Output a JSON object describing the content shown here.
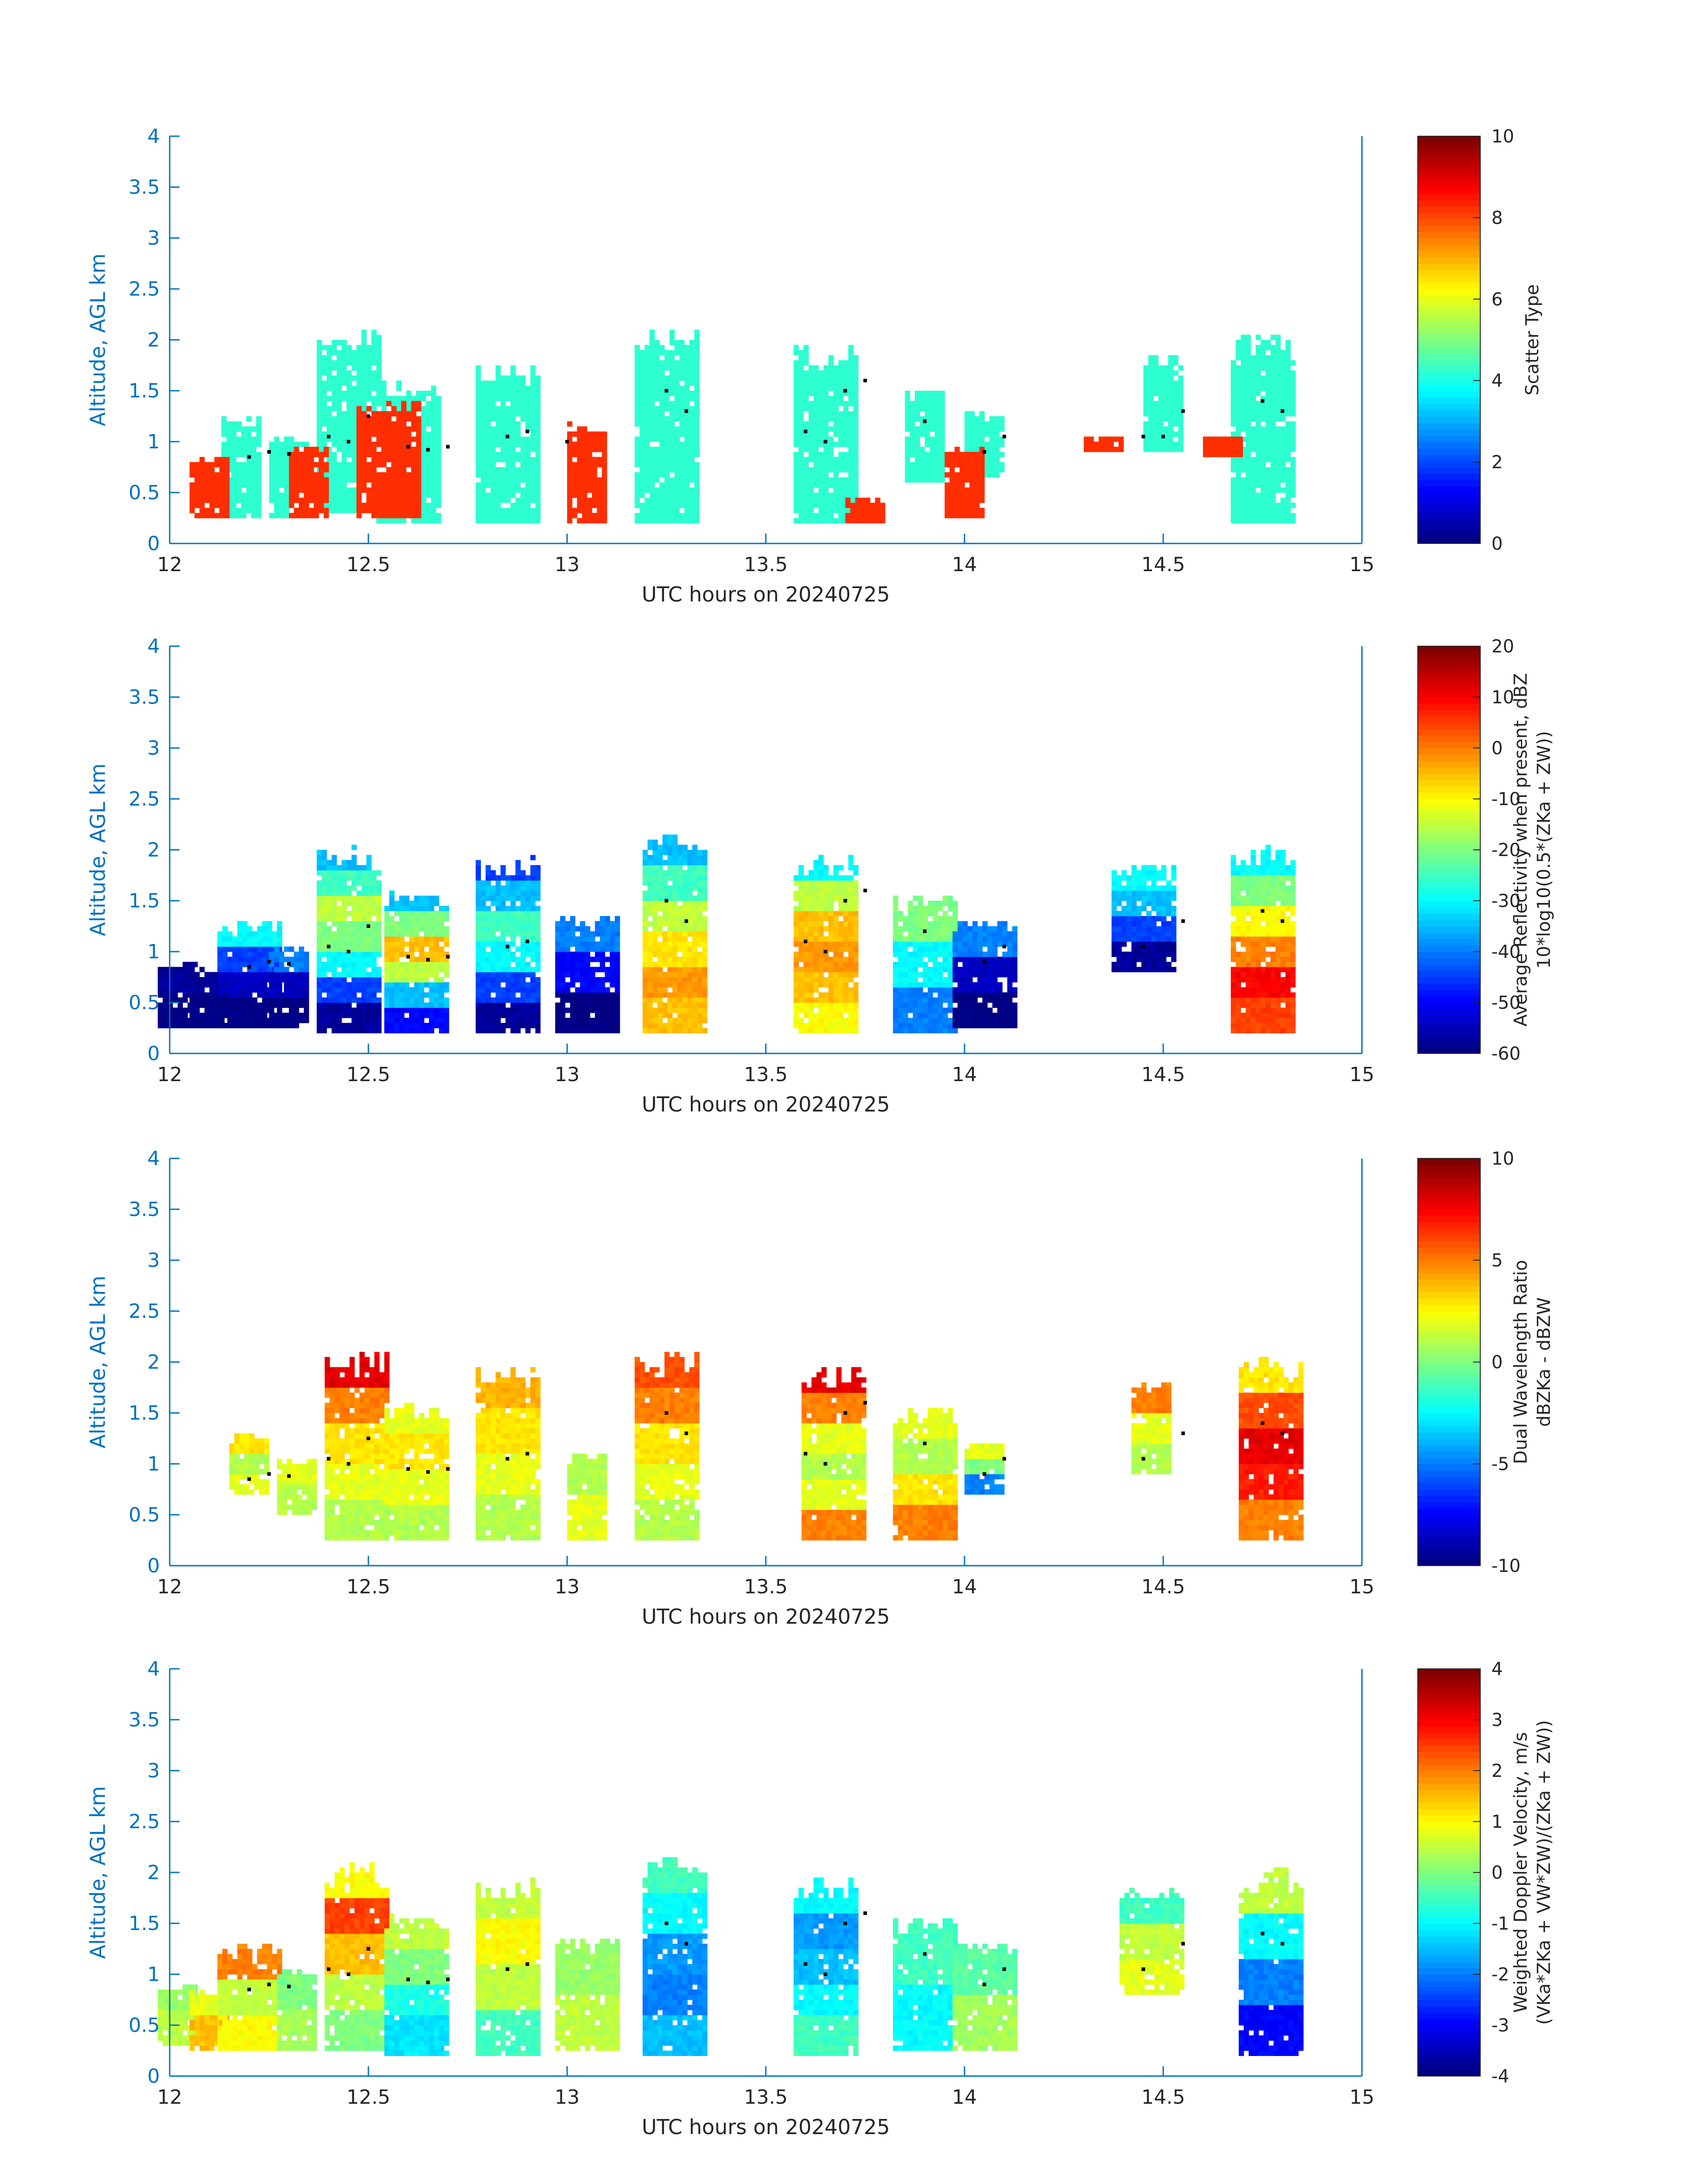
{
  "chart_data": [
    {
      "type": "heatmap",
      "panel": "scatter-type",
      "xlabel": "UTC hours on 20240725",
      "ylabel": "Altitude, AGL km",
      "xlim": [
        12,
        15
      ],
      "ylim": [
        0,
        4
      ],
      "xticks": [
        "12",
        "12.5",
        "13",
        "13.5",
        "14",
        "14.5",
        "15"
      ],
      "yticks": [
        "0",
        "0.5",
        "1",
        "1.5",
        "2",
        "2.5",
        "3",
        "3.5",
        "4"
      ],
      "colorbar": {
        "label_lines": [
          "Scatter Type"
        ],
        "range": [
          0,
          10
        ],
        "ticks": [
          "0",
          "2",
          "4",
          "6",
          "8",
          "10"
        ],
        "colormap": "jet"
      },
      "columns": [
        {
          "t": 12.18,
          "base": 0.25,
          "top": 1.25,
          "values": [
            4.2
          ]
        },
        {
          "t": 12.3,
          "base": 0.25,
          "top": 1.05,
          "values": [
            4.2
          ]
        },
        {
          "t": 12.45,
          "base": 0.3,
          "top": 2.1,
          "values": [
            4.2
          ]
        },
        {
          "t": 12.6,
          "base": 0.2,
          "top": 1.6,
          "values": [
            4.2
          ]
        },
        {
          "t": 12.85,
          "base": 0.2,
          "top": 1.75,
          "values": [
            4.2
          ]
        },
        {
          "t": 13.25,
          "base": 0.2,
          "top": 2.1,
          "values": [
            4.2
          ]
        },
        {
          "t": 13.65,
          "base": 0.2,
          "top": 1.95,
          "values": [
            4.2
          ]
        },
        {
          "t": 13.9,
          "base": 0.6,
          "top": 1.5,
          "values": [
            4.2
          ]
        },
        {
          "t": 14.05,
          "base": 0.65,
          "top": 1.3,
          "values": [
            4.2
          ]
        },
        {
          "t": 14.5,
          "base": 0.9,
          "top": 1.85,
          "values": [
            4.2
          ]
        },
        {
          "t": 14.75,
          "base": 0.2,
          "top": 2.05,
          "values": [
            4.2
          ]
        },
        {
          "t": 12.1,
          "base": 0.25,
          "top": 0.85,
          "values": [
            8.3
          ]
        },
        {
          "t": 12.35,
          "base": 0.25,
          "top": 0.95,
          "values": [
            8.3
          ]
        },
        {
          "t": 12.55,
          "base": 0.25,
          "top": 1.4,
          "values": [
            8.3
          ]
        },
        {
          "t": 13.05,
          "base": 0.2,
          "top": 1.2,
          "values": [
            8.3
          ]
        },
        {
          "t": 13.75,
          "base": 0.2,
          "top": 0.45,
          "values": [
            8.3
          ]
        },
        {
          "t": 14.0,
          "base": 0.25,
          "top": 0.95,
          "values": [
            8.3
          ]
        },
        {
          "t": 14.35,
          "base": 0.9,
          "top": 1.05,
          "values": [
            8.3
          ]
        },
        {
          "t": 14.65,
          "base": 0.85,
          "top": 1.05,
          "values": [
            8.3
          ]
        }
      ],
      "tops": [
        {
          "t": 12.2,
          "h": 0.85
        },
        {
          "t": 12.25,
          "h": 0.9
        },
        {
          "t": 12.3,
          "h": 0.88
        },
        {
          "t": 12.4,
          "h": 1.05
        },
        {
          "t": 12.45,
          "h": 1.0
        },
        {
          "t": 12.5,
          "h": 1.25
        },
        {
          "t": 12.6,
          "h": 0.95
        },
        {
          "t": 12.65,
          "h": 0.92
        },
        {
          "t": 12.7,
          "h": 0.95
        },
        {
          "t": 12.85,
          "h": 1.05
        },
        {
          "t": 12.9,
          "h": 1.1
        },
        {
          "t": 13.0,
          "h": 1.0
        },
        {
          "t": 13.25,
          "h": 1.5
        },
        {
          "t": 13.3,
          "h": 1.3
        },
        {
          "t": 13.6,
          "h": 1.1
        },
        {
          "t": 13.65,
          "h": 1.0
        },
        {
          "t": 13.7,
          "h": 1.5
        },
        {
          "t": 13.75,
          "h": 1.6
        },
        {
          "t": 13.9,
          "h": 1.2
        },
        {
          "t": 14.05,
          "h": 0.9
        },
        {
          "t": 14.1,
          "h": 1.05
        },
        {
          "t": 14.45,
          "h": 1.05
        },
        {
          "t": 14.5,
          "h": 1.05
        },
        {
          "t": 14.55,
          "h": 1.3
        },
        {
          "t": 14.75,
          "h": 1.4
        },
        {
          "t": 14.8,
          "h": 1.3
        }
      ]
    },
    {
      "type": "heatmap",
      "panel": "reflectivity",
      "xlabel": "UTC hours on 20240725",
      "ylabel": "Altitude, AGL km",
      "xlim": [
        12,
        15
      ],
      "ylim": [
        0,
        4
      ],
      "xticks": [
        "12",
        "12.5",
        "13",
        "13.5",
        "14",
        "14.5",
        "15"
      ],
      "yticks": [
        "0",
        "0.5",
        "1",
        "1.5",
        "2",
        "2.5",
        "3",
        "3.5",
        "4"
      ],
      "colorbar": {
        "label_lines": [
          "Average Reflectivity when present, dBZ",
          "10*log10(0.5*(ZKa + ZW))"
        ],
        "range": [
          -60,
          20
        ],
        "ticks": [
          "-60",
          "-50",
          "-40",
          "-30",
          "-20",
          "-10",
          "0",
          "10",
          "20"
        ],
        "colormap": "jet"
      },
      "columns": [
        {
          "t": 12.02,
          "base": 0.25,
          "top": 0.9,
          "values": [
            -60,
            -58
          ]
        },
        {
          "t": 12.1,
          "base": 0.25,
          "top": 0.85,
          "values": [
            -60,
            -58
          ]
        },
        {
          "t": 12.2,
          "base": 0.25,
          "top": 1.3,
          "values": [
            -60,
            -55,
            -45,
            -30
          ]
        },
        {
          "t": 12.3,
          "base": 0.25,
          "top": 1.05,
          "values": [
            -60,
            -55,
            -40
          ]
        },
        {
          "t": 12.45,
          "base": 0.2,
          "top": 2.05,
          "values": [
            -58,
            -45,
            -30,
            -20,
            -15,
            -25,
            -35
          ]
        },
        {
          "t": 12.62,
          "base": 0.2,
          "top": 1.6,
          "values": [
            -50,
            -35,
            -15,
            -5,
            -20,
            -35
          ]
        },
        {
          "t": 12.85,
          "base": 0.2,
          "top": 1.95,
          "values": [
            -58,
            -45,
            -30,
            -25,
            -35,
            -45
          ]
        },
        {
          "t": 13.05,
          "base": 0.2,
          "top": 1.35,
          "values": [
            -60,
            -50,
            -40
          ]
        },
        {
          "t": 13.27,
          "base": 0.2,
          "top": 2.15,
          "values": [
            -5,
            -2,
            -8,
            -15,
            -25,
            -35
          ]
        },
        {
          "t": 13.65,
          "base": 0.2,
          "top": 1.95,
          "values": [
            -10,
            -5,
            -2,
            -5,
            -15,
            -30
          ]
        },
        {
          "t": 13.9,
          "base": 0.2,
          "top": 1.55,
          "values": [
            -40,
            -30,
            -20
          ]
        },
        {
          "t": 14.05,
          "base": 0.25,
          "top": 1.3,
          "values": [
            -60,
            -55,
            -40
          ]
        },
        {
          "t": 14.45,
          "base": 0.8,
          "top": 1.85,
          "values": [
            -58,
            -45,
            -35,
            -30
          ]
        },
        {
          "t": 14.75,
          "base": 0.2,
          "top": 2.05,
          "values": [
            5,
            10,
            0,
            -10,
            -20,
            -30
          ]
        }
      ],
      "tops": [
        {
          "t": 12.2,
          "h": 0.85
        },
        {
          "t": 12.25,
          "h": 0.9
        },
        {
          "t": 12.3,
          "h": 0.88
        },
        {
          "t": 12.4,
          "h": 1.05
        },
        {
          "t": 12.45,
          "h": 1.0
        },
        {
          "t": 12.5,
          "h": 1.25
        },
        {
          "t": 12.6,
          "h": 0.95
        },
        {
          "t": 12.65,
          "h": 0.92
        },
        {
          "t": 12.7,
          "h": 0.95
        },
        {
          "t": 12.85,
          "h": 1.05
        },
        {
          "t": 12.9,
          "h": 1.1
        },
        {
          "t": 13.25,
          "h": 1.5
        },
        {
          "t": 13.3,
          "h": 1.3
        },
        {
          "t": 13.6,
          "h": 1.1
        },
        {
          "t": 13.65,
          "h": 1.0
        },
        {
          "t": 13.7,
          "h": 1.5
        },
        {
          "t": 13.75,
          "h": 1.6
        },
        {
          "t": 13.9,
          "h": 1.2
        },
        {
          "t": 14.05,
          "h": 0.9
        },
        {
          "t": 14.1,
          "h": 1.05
        },
        {
          "t": 14.45,
          "h": 1.05
        },
        {
          "t": 14.55,
          "h": 1.3
        },
        {
          "t": 14.75,
          "h": 1.4
        },
        {
          "t": 14.8,
          "h": 1.3
        }
      ]
    },
    {
      "type": "heatmap",
      "panel": "dual-wavelength-ratio",
      "xlabel": "UTC hours on 20240725",
      "ylabel": "Altitude, AGL km",
      "xlim": [
        12,
        15
      ],
      "ylim": [
        0,
        4
      ],
      "xticks": [
        "12",
        "12.5",
        "13",
        "13.5",
        "14",
        "14.5",
        "15"
      ],
      "yticks": [
        "0",
        "0.5",
        "1",
        "1.5",
        "2",
        "2.5",
        "3",
        "3.5",
        "4"
      ],
      "colorbar": {
        "label_lines": [
          "Dual Wavelength Ratio",
          "dBZKa - dBZW"
        ],
        "range": [
          -10,
          10
        ],
        "ticks": [
          "-10",
          "-5",
          "0",
          "5",
          "10"
        ],
        "colormap": "jet"
      },
      "columns": [
        {
          "t": 12.2,
          "base": 0.7,
          "top": 1.3,
          "values": [
            2,
            1,
            3
          ]
        },
        {
          "t": 12.32,
          "base": 0.5,
          "top": 1.05,
          "values": [
            1,
            2
          ]
        },
        {
          "t": 12.47,
          "base": 0.25,
          "top": 2.1,
          "values": [
            1,
            2,
            3,
            5,
            8
          ]
        },
        {
          "t": 12.62,
          "base": 0.25,
          "top": 1.6,
          "values": [
            1,
            2,
            3,
            2
          ]
        },
        {
          "t": 12.85,
          "base": 0.25,
          "top": 1.95,
          "values": [
            1,
            2,
            3,
            4
          ]
        },
        {
          "t": 13.05,
          "base": 0.25,
          "top": 1.1,
          "values": [
            2,
            1
          ]
        },
        {
          "t": 13.25,
          "base": 0.25,
          "top": 2.1,
          "values": [
            1,
            2,
            3,
            5,
            6
          ]
        },
        {
          "t": 13.67,
          "base": 0.25,
          "top": 1.95,
          "values": [
            5,
            2,
            1,
            2,
            5,
            8
          ]
        },
        {
          "t": 13.9,
          "base": 0.25,
          "top": 1.55,
          "values": [
            5,
            3,
            1,
            2
          ]
        },
        {
          "t": 14.05,
          "base": 0.7,
          "top": 1.2,
          "values": [
            -5,
            0,
            2
          ]
        },
        {
          "t": 14.47,
          "base": 0.9,
          "top": 1.8,
          "values": [
            1,
            2,
            5
          ]
        },
        {
          "t": 14.77,
          "base": 0.25,
          "top": 2.05,
          "values": [
            5,
            7,
            8,
            6,
            3
          ]
        }
      ],
      "tops": [
        {
          "t": 12.2,
          "h": 0.85
        },
        {
          "t": 12.25,
          "h": 0.9
        },
        {
          "t": 12.3,
          "h": 0.88
        },
        {
          "t": 12.4,
          "h": 1.05
        },
        {
          "t": 12.45,
          "h": 1.0
        },
        {
          "t": 12.5,
          "h": 1.25
        },
        {
          "t": 12.6,
          "h": 0.95
        },
        {
          "t": 12.65,
          "h": 0.92
        },
        {
          "t": 12.7,
          "h": 0.95
        },
        {
          "t": 12.85,
          "h": 1.05
        },
        {
          "t": 12.9,
          "h": 1.1
        },
        {
          "t": 13.25,
          "h": 1.5
        },
        {
          "t": 13.3,
          "h": 1.3
        },
        {
          "t": 13.6,
          "h": 1.1
        },
        {
          "t": 13.65,
          "h": 1.0
        },
        {
          "t": 13.7,
          "h": 1.5
        },
        {
          "t": 13.75,
          "h": 1.6
        },
        {
          "t": 13.9,
          "h": 1.2
        },
        {
          "t": 14.05,
          "h": 0.9
        },
        {
          "t": 14.1,
          "h": 1.05
        },
        {
          "t": 14.45,
          "h": 1.05
        },
        {
          "t": 14.55,
          "h": 1.3
        },
        {
          "t": 14.75,
          "h": 1.4
        },
        {
          "t": 14.8,
          "h": 1.3
        }
      ]
    },
    {
      "type": "heatmap",
      "panel": "doppler-velocity",
      "xlabel": "UTC hours on 20240725",
      "ylabel": "Altitude, AGL km",
      "xlim": [
        12,
        15
      ],
      "ylim": [
        0,
        4
      ],
      "xticks": [
        "12",
        "12.5",
        "13",
        "13.5",
        "14",
        "14.5",
        "15"
      ],
      "yticks": [
        "0",
        "0.5",
        "1",
        "1.5",
        "2",
        "2.5",
        "3",
        "3.5",
        "4"
      ],
      "colorbar": {
        "label_lines": [
          "Weighted Doppler Velocity, m/s",
          "(VKa*ZKa + VW*ZW)/(ZKa + ZW))"
        ],
        "range": [
          -4,
          4
        ],
        "ticks": [
          "-4",
          "-3",
          "-2",
          "-1",
          "0",
          "1",
          "2",
          "3",
          "4"
        ],
        "colormap": "jet"
      },
      "columns": [
        {
          "t": 12.02,
          "base": 0.3,
          "top": 0.9,
          "values": [
            0.5,
            0.2
          ]
        },
        {
          "t": 12.1,
          "base": 0.25,
          "top": 0.85,
          "values": [
            1.5,
            0.8
          ]
        },
        {
          "t": 12.2,
          "base": 0.25,
          "top": 1.3,
          "values": [
            1.0,
            0.5,
            2.0
          ]
        },
        {
          "t": 12.32,
          "base": 0.25,
          "top": 1.05,
          "values": [
            0.3,
            0.0
          ]
        },
        {
          "t": 12.47,
          "base": 0.25,
          "top": 2.1,
          "values": [
            0.0,
            0.5,
            1.5,
            2.5,
            1.0
          ]
        },
        {
          "t": 12.62,
          "base": 0.2,
          "top": 1.6,
          "values": [
            -1.2,
            -0.8,
            0.0,
            0.5
          ]
        },
        {
          "t": 12.85,
          "base": 0.2,
          "top": 1.95,
          "values": [
            -0.5,
            0.5,
            1.0,
            0.5
          ]
        },
        {
          "t": 13.05,
          "base": 0.25,
          "top": 1.35,
          "values": [
            0.5,
            0.2
          ]
        },
        {
          "t": 13.27,
          "base": 0.2,
          "top": 2.15,
          "values": [
            -1.5,
            -2.0,
            -1.8,
            -1.0,
            -0.5
          ]
        },
        {
          "t": 13.65,
          "base": 0.2,
          "top": 1.95,
          "values": [
            -0.5,
            -1.0,
            -1.5,
            -1.8,
            -1.0
          ]
        },
        {
          "t": 13.9,
          "base": 0.25,
          "top": 1.55,
          "values": [
            -1.0,
            -0.5
          ]
        },
        {
          "t": 14.05,
          "base": 0.25,
          "top": 1.3,
          "values": [
            0.3,
            -0.3
          ]
        },
        {
          "t": 14.47,
          "base": 0.8,
          "top": 1.85,
          "values": [
            0.8,
            0.5,
            -0.5
          ]
        },
        {
          "t": 14.77,
          "base": 0.2,
          "top": 2.05,
          "values": [
            -3.0,
            -2.0,
            -1.0,
            0.5
          ]
        }
      ],
      "tops": [
        {
          "t": 12.2,
          "h": 0.85
        },
        {
          "t": 12.25,
          "h": 0.9
        },
        {
          "t": 12.3,
          "h": 0.88
        },
        {
          "t": 12.4,
          "h": 1.05
        },
        {
          "t": 12.45,
          "h": 1.0
        },
        {
          "t": 12.5,
          "h": 1.25
        },
        {
          "t": 12.6,
          "h": 0.95
        },
        {
          "t": 12.65,
          "h": 0.92
        },
        {
          "t": 12.7,
          "h": 0.95
        },
        {
          "t": 12.85,
          "h": 1.05
        },
        {
          "t": 12.9,
          "h": 1.1
        },
        {
          "t": 13.25,
          "h": 1.5
        },
        {
          "t": 13.3,
          "h": 1.3
        },
        {
          "t": 13.6,
          "h": 1.1
        },
        {
          "t": 13.65,
          "h": 1.0
        },
        {
          "t": 13.7,
          "h": 1.5
        },
        {
          "t": 13.75,
          "h": 1.6
        },
        {
          "t": 13.9,
          "h": 1.2
        },
        {
          "t": 14.05,
          "h": 0.9
        },
        {
          "t": 14.1,
          "h": 1.05
        },
        {
          "t": 14.45,
          "h": 1.05
        },
        {
          "t": 14.55,
          "h": 1.3
        },
        {
          "t": 14.75,
          "h": 1.4
        },
        {
          "t": 14.8,
          "h": 1.3
        }
      ]
    }
  ]
}
